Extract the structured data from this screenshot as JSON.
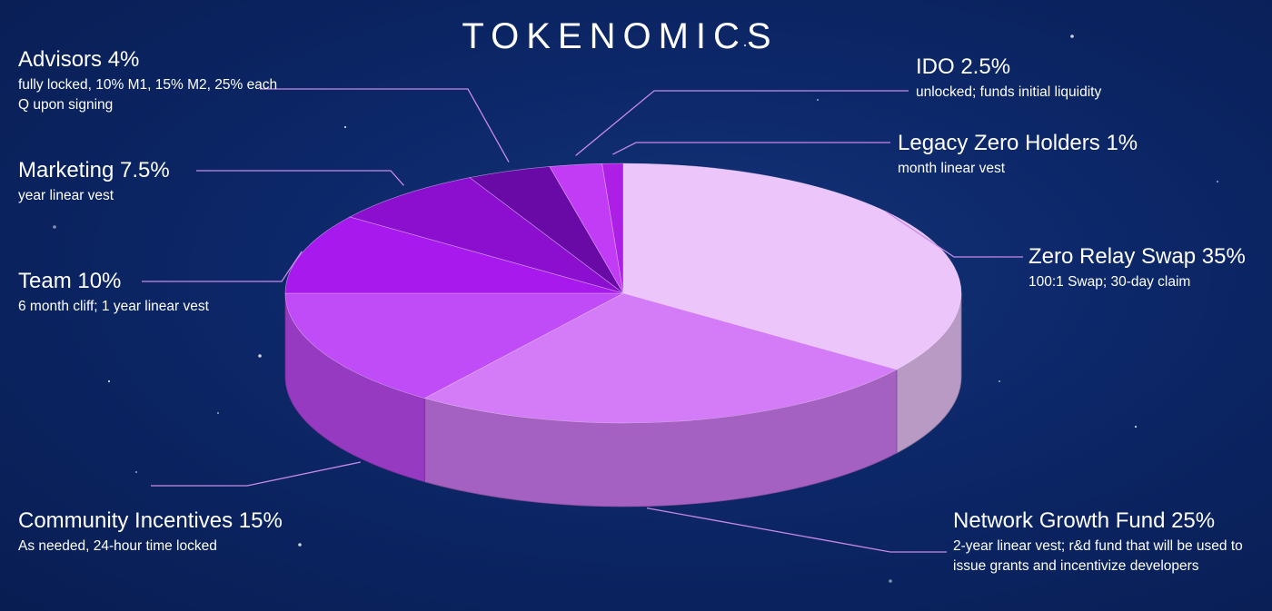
{
  "title": "TOKENOMICS",
  "colors": {
    "background": "#0c2768",
    "leader_line": "#c98ae8",
    "zero_relay_swap": "#ecc6fb",
    "network_growth_fund": "#d47cf7",
    "community_incentives": "#c04cf7",
    "team": "#a819ee",
    "marketing": "#8c0fd0",
    "advisors": "#6a0aa6",
    "ido": "#c23cf6",
    "legacy_zero_holders": "#ae1fe6"
  },
  "chart_data": {
    "type": "pie",
    "title": "TOKENOMICS",
    "three_d": true,
    "slices": [
      {
        "name": "Zero Relay Swap",
        "value": 35,
        "label": "Zero Relay Swap 35%",
        "note": "100:1 Swap; 30-day claim",
        "color": "#ecc6fb"
      },
      {
        "name": "Network Growth Fund",
        "value": 25,
        "label": "Network Growth Fund 25%",
        "note": "2-year linear vest; r&d fund that will be used to issue grants and incentivize developers",
        "color": "#d47cf7"
      },
      {
        "name": "Community Incentives",
        "value": 15,
        "label": "Community Incentives 15%",
        "note": "As needed, 24-hour time locked",
        "color": "#c04cf7"
      },
      {
        "name": "Team",
        "value": 10,
        "label": "Team 10%",
        "note": "6 month cliff; 1 year linear vest",
        "color": "#a819ee"
      },
      {
        "name": "Marketing",
        "value": 7.5,
        "label": "Marketing 7.5%",
        "note": "year linear vest",
        "color": "#8c0fd0"
      },
      {
        "name": "Advisors",
        "value": 4,
        "label": "Advisors 4%",
        "note": "fully locked, 10% M1, 15% M2, 25% each Q upon signing",
        "color": "#6a0aa6"
      },
      {
        "name": "IDO",
        "value": 2.5,
        "label": "IDO 2.5%",
        "note": "unlocked; funds initial liquidity",
        "color": "#c23cf6"
      },
      {
        "name": "Legacy Zero Holders",
        "value": 1,
        "label": "Legacy Zero Holders 1%",
        "note": "month linear vest",
        "color": "#ae1fe6"
      }
    ]
  }
}
